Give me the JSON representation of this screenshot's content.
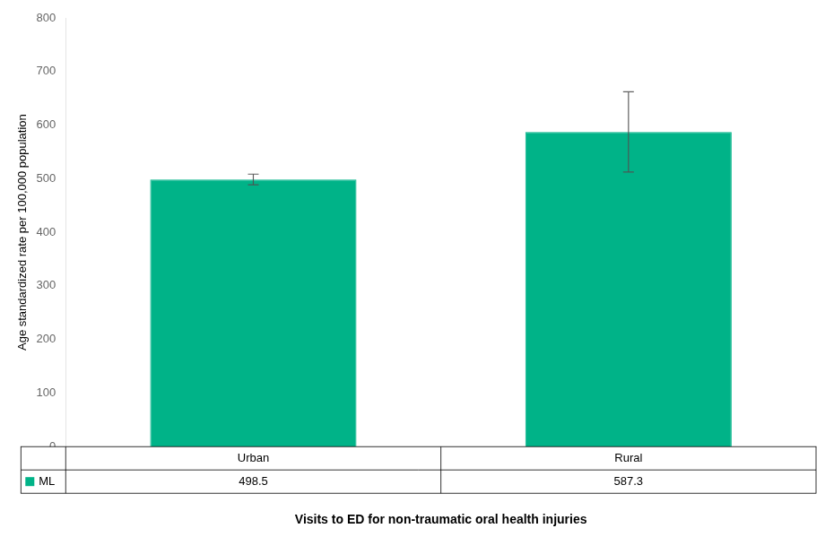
{
  "chart_data": {
    "type": "bar",
    "categories": [
      "Urban",
      "Rural"
    ],
    "series": [
      {
        "name": "ML",
        "color": "#00B388",
        "values": [
          498.5,
          587.3
        ],
        "errors": [
          10,
          75
        ]
      }
    ],
    "ylabel": "Age standardized rate per 100,000 population",
    "xlabel": "Visits to ED for non-traumatic oral health injuries",
    "ylim": [
      0,
      800
    ],
    "yticks": [
      0,
      100,
      200,
      300,
      400,
      500,
      600,
      700,
      800
    ],
    "grid": false,
    "data_labels": true
  }
}
